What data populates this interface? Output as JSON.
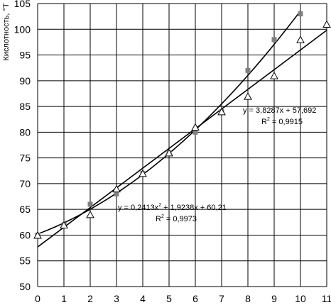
{
  "chart_data": {
    "type": "scatter",
    "xlim": [
      0,
      11
    ],
    "ylim": [
      50,
      105
    ],
    "x_ticks": [
      0,
      1,
      2,
      3,
      4,
      5,
      6,
      7,
      8,
      9,
      10,
      11
    ],
    "y_ticks": [
      50,
      55,
      60,
      65,
      70,
      75,
      80,
      85,
      90,
      95,
      100,
      105
    ],
    "ylabel": "Кислотность, °Т",
    "grid": true,
    "series": [
      {
        "marker": "square",
        "color": "#808080",
        "x": [
          0,
          1,
          2,
          3,
          4,
          5,
          6,
          7,
          8,
          9,
          10
        ],
        "y": [
          60,
          62,
          66,
          68,
          72,
          76,
          80,
          84,
          92,
          98,
          103
        ]
      },
      {
        "marker": "triangle-open",
        "color": "#000000",
        "x": [
          0,
          1,
          2,
          3,
          4,
          5,
          6,
          7,
          8,
          9,
          10,
          11
        ],
        "y": [
          60,
          62,
          64,
          69,
          72,
          76,
          81,
          84,
          87,
          91,
          98,
          101
        ]
      }
    ],
    "trendlines": [
      {
        "type": "linear",
        "slope": 3.8287,
        "intercept": 57.692,
        "x_range": [
          0,
          11
        ],
        "equation": "y = 3,8287x + 57,692",
        "r2_prefix": "R",
        "r2_sup": "2",
        "r2_value": " = 0,9915"
      },
      {
        "type": "polynomial",
        "a": 0.2413,
        "b": 1.9238,
        "c": 60.21,
        "x_range": [
          0,
          10
        ],
        "eq_main": "y = 0,2413x",
        "eq_sup": "2",
        "eq_rest": " + 1,9238x + 60,21",
        "r2_prefix": "R",
        "r2_sup": "2",
        "r2_value": " = 0,9973"
      }
    ]
  }
}
